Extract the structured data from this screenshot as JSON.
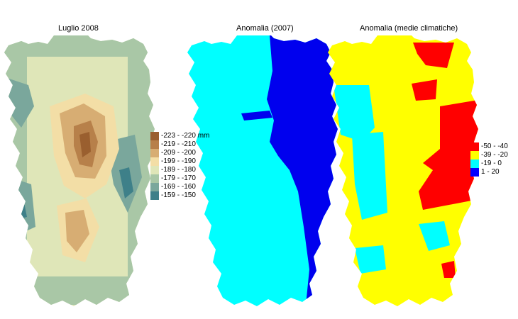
{
  "panels": [
    {
      "title": "Luglio 2008",
      "legend": [
        {
          "label": "-223 - -220 mm",
          "color": "#9a5f2f"
        },
        {
          "label": "-219 - -210",
          "color": "#b7804a"
        },
        {
          "label": "-209 - -200",
          "color": "#d7ad73"
        },
        {
          "label": "-199 - -190",
          "color": "#f3dea6"
        },
        {
          "label": "-189 - -180",
          "color": "#dfe6b8"
        },
        {
          "label": "-179 - -170",
          "color": "#a9c7a6"
        },
        {
          "label": "-169 - -160",
          "color": "#7aa79c"
        },
        {
          "label": "-159 - -150",
          "color": "#3e8089"
        }
      ]
    },
    {
      "title": "Anomalia (2007)",
      "legend": []
    },
    {
      "title": "Anomalia (medie climatiche)",
      "legend": [
        {
          "label": "-50 - -40",
          "color": "#ff0000"
        },
        {
          "label": "-39 - -20",
          "color": "#ffff00"
        },
        {
          "label": "-19 - 0",
          "color": "#00ffff"
        },
        {
          "label": "1 - 20",
          "color": "#0000ff"
        }
      ]
    }
  ],
  "colors": {
    "cyan": "#00ffff",
    "blue": "#0000ee",
    "red": "#ff0000",
    "yellow": "#ffff00",
    "island_base": "#e4e8bd"
  }
}
